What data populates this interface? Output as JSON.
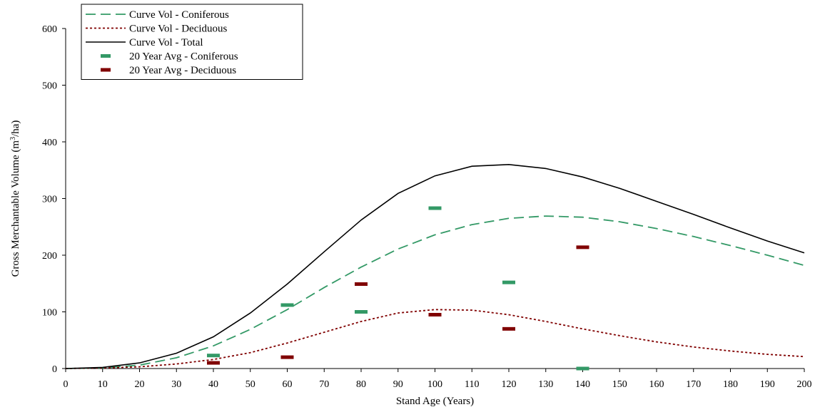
{
  "chart_data": {
    "type": "line",
    "xlabel": "Stand Age (Years)",
    "ylabel_main": "Gross Merchantable Volume (m",
    "ylabel_sup": "3",
    "ylabel_tail": "/ha)",
    "xlim": [
      0,
      200
    ],
    "ylim": [
      0,
      600
    ],
    "x_ticks": [
      0,
      10,
      20,
      30,
      40,
      50,
      60,
      70,
      80,
      90,
      100,
      110,
      120,
      130,
      140,
      150,
      160,
      170,
      180,
      190,
      200
    ],
    "y_ticks": [
      0,
      100,
      200,
      300,
      400,
      500,
      600
    ],
    "grid": false,
    "legend_position": "top-left",
    "colors": {
      "coniferous": "#339966",
      "deciduous": "#800000",
      "total": "#000000"
    },
    "curve_x": [
      0,
      10,
      20,
      30,
      40,
      50,
      60,
      70,
      80,
      90,
      100,
      110,
      120,
      130,
      140,
      150,
      160,
      170,
      180,
      190,
      200
    ],
    "series": [
      {
        "name": "Curve Vol - Coniferous",
        "style": "dashed",
        "color_key": "coniferous",
        "values": [
          0,
          1,
          6,
          19,
          40,
          69,
          104,
          143,
          179,
          211,
          236,
          254,
          265,
          269,
          267,
          259,
          247,
          233,
          217,
          200,
          182
        ]
      },
      {
        "name": "Curve Vol - Deciduous",
        "style": "dotted",
        "color_key": "deciduous",
        "values": [
          0,
          1,
          3,
          8,
          16,
          28,
          45,
          64,
          83,
          98,
          104,
          103,
          95,
          83,
          70,
          58,
          47,
          38,
          31,
          25,
          21
        ]
      },
      {
        "name": "Curve Vol - Total",
        "style": "solid",
        "color_key": "total",
        "values": [
          0,
          2,
          10,
          27,
          56,
          98,
          149,
          206,
          262,
          309,
          340,
          357,
          360,
          353,
          338,
          318,
          295,
          272,
          248,
          225,
          204
        ]
      }
    ],
    "markers": [
      {
        "name": "20 Year Avg - Coniferous",
        "color_key": "coniferous",
        "points": [
          [
            40,
            23
          ],
          [
            60,
            112
          ],
          [
            80,
            100
          ],
          [
            100,
            283
          ],
          [
            120,
            152
          ],
          [
            140,
            0
          ]
        ]
      },
      {
        "name": "20 Year Avg - Deciduous",
        "color_key": "deciduous",
        "points": [
          [
            40,
            10
          ],
          [
            60,
            20
          ],
          [
            80,
            149
          ],
          [
            100,
            95
          ],
          [
            120,
            70
          ],
          [
            140,
            214
          ]
        ]
      }
    ]
  }
}
